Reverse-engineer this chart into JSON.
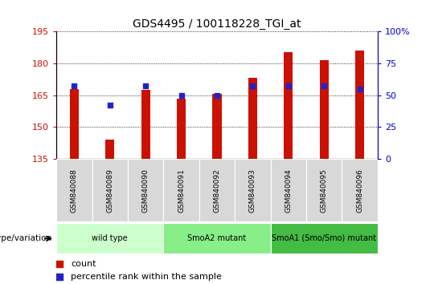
{
  "title": "GDS4495 / 100118228_TGI_at",
  "samples": [
    "GSM840088",
    "GSM840089",
    "GSM840090",
    "GSM840091",
    "GSM840092",
    "GSM840093",
    "GSM840094",
    "GSM840095",
    "GSM840096"
  ],
  "counts": [
    168.0,
    144.0,
    167.5,
    163.5,
    165.5,
    173.0,
    185.0,
    181.5,
    186.0
  ],
  "percentile_ranks": [
    57,
    42,
    57,
    50,
    50,
    57,
    57,
    57,
    55
  ],
  "ylim_left": [
    135,
    195
  ],
  "ylim_right": [
    0,
    100
  ],
  "yticks_left": [
    135,
    150,
    165,
    180,
    195
  ],
  "yticks_right": [
    0,
    25,
    50,
    75,
    100
  ],
  "ytick_labels_right": [
    "0",
    "25",
    "50",
    "75",
    "100%"
  ],
  "bar_color": "#CC1100",
  "dot_color": "#2222CC",
  "groups": [
    {
      "label": "wild type",
      "start": 0,
      "end": 3,
      "color": "#CCFFCC"
    },
    {
      "label": "SmoA2 mutant",
      "start": 3,
      "end": 6,
      "color": "#88EE88"
    },
    {
      "label": "SmoA1 (Smo/Smo) mutant",
      "start": 6,
      "end": 9,
      "color": "#44BB44"
    }
  ],
  "xlabel_label": "genotype/variation",
  "legend_count_label": "count",
  "legend_pct_label": "percentile rank within the sample",
  "bar_width": 0.25,
  "dot_size": 25,
  "tick_label_bg": "#D8D8D8"
}
